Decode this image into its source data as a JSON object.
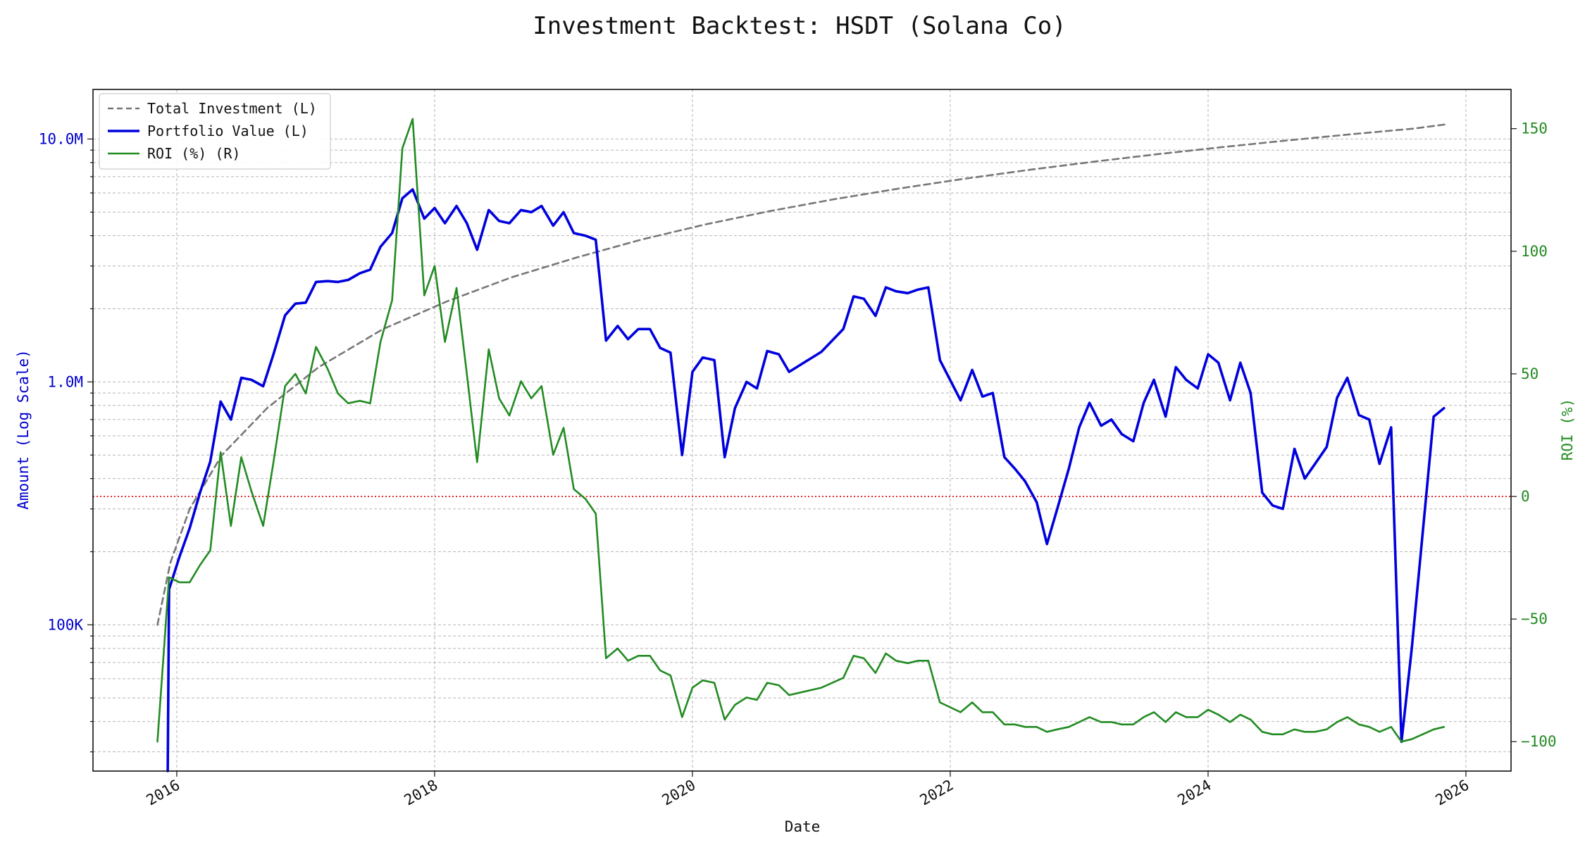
{
  "chart_data": {
    "type": "line",
    "title": "Investment Backtest: HSDT (Solana Co)",
    "xlabel": "Date",
    "ylabel_left": "Amount (Log Scale)",
    "ylabel_right": "ROI (%)",
    "x_ticks": [
      "2016",
      "2018",
      "2020",
      "2022",
      "2024",
      "2026"
    ],
    "y_left_ticks": [
      {
        "value": 100000,
        "label": "100K"
      },
      {
        "value": 1000000,
        "label": "1.0M"
      },
      {
        "value": 10000000,
        "label": "10.0M"
      }
    ],
    "y_right_ticks": [
      {
        "value": -100,
        "label": "−100"
      },
      {
        "value": -50,
        "label": "−50"
      },
      {
        "value": 0,
        "label": "0"
      },
      {
        "value": 50,
        "label": "50"
      },
      {
        "value": 100,
        "label": "100"
      },
      {
        "value": 150,
        "label": "150"
      }
    ],
    "x_range": [
      2015.35,
      2026.35
    ],
    "y_left_range": [
      25000,
      16000000
    ],
    "y_left_scale": "log",
    "y_right_range": [
      -112,
      166
    ],
    "grid": true,
    "legend_position": "top-left",
    "reference_line": {
      "axis": "right",
      "value": 0,
      "color": "#dd0000",
      "style": "dotted"
    },
    "series": [
      {
        "name": "Total Investment (L)",
        "axis": "left",
        "color": "#777777",
        "style": "dashed",
        "x": [
          2015.85,
          2015.95,
          2016.1,
          2016.35,
          2016.7,
          2017.1,
          2017.6,
          2018.1,
          2018.6,
          2019.1,
          2019.6,
          2020.1,
          2020.6,
          2021.1,
          2021.6,
          2022.1,
          2022.6,
          2023.1,
          2023.6,
          2024.1,
          2024.6,
          2025.1,
          2025.6,
          2025.85
        ],
        "y": [
          100000,
          180000,
          300000,
          500000,
          780000,
          1150000,
          1650000,
          2150000,
          2700000,
          3250000,
          3850000,
          4450000,
          5050000,
          5650000,
          6250000,
          6850000,
          7450000,
          8050000,
          8650000,
          9250000,
          9850000,
          10450000,
          11050000,
          11500000
        ]
      },
      {
        "name": "Portfolio Value (L)",
        "axis": "left",
        "color": "#0000dd",
        "style": "solid",
        "x": [
          2015.93,
          2015.94,
          2016.02,
          2016.1,
          2016.18,
          2016.26,
          2016.34,
          2016.42,
          2016.5,
          2016.58,
          2016.67,
          2016.75,
          2016.84,
          2016.92,
          2017.0,
          2017.08,
          2017.17,
          2017.25,
          2017.33,
          2017.42,
          2017.5,
          2017.58,
          2017.67,
          2017.75,
          2017.83,
          2017.92,
          2018.0,
          2018.08,
          2018.17,
          2018.25,
          2018.33,
          2018.42,
          2018.5,
          2018.58,
          2018.67,
          2018.75,
          2018.83,
          2018.92,
          2019.0,
          2019.08,
          2019.17,
          2019.25,
          2019.33,
          2019.42,
          2019.5,
          2019.58,
          2019.67,
          2019.75,
          2019.83,
          2019.92,
          2020.0,
          2020.08,
          2020.17,
          2020.25,
          2020.33,
          2020.42,
          2020.5,
          2020.58,
          2020.67,
          2020.75,
          2021.0,
          2021.17,
          2021.25,
          2021.33,
          2021.42,
          2021.5,
          2021.58,
          2021.67,
          2021.75,
          2021.83,
          2021.92,
          2022.08,
          2022.17,
          2022.25,
          2022.33,
          2022.42,
          2022.5,
          2022.58,
          2022.67,
          2022.75,
          2022.83,
          2022.92,
          2023.0,
          2023.08,
          2023.17,
          2023.25,
          2023.33,
          2023.42,
          2023.5,
          2023.58,
          2023.67,
          2023.75,
          2023.83,
          2023.92,
          2024.0,
          2024.08,
          2024.17,
          2024.25,
          2024.33,
          2024.42,
          2024.5,
          2024.58,
          2024.67,
          2024.75,
          2024.83,
          2024.92,
          2025.0,
          2025.08,
          2025.17,
          2025.25,
          2025.33,
          2025.42,
          2025.5,
          2025.58,
          2025.75,
          2025.83
        ],
        "y": [
          25000,
          140000,
          190000,
          250000,
          350000,
          470000,
          830000,
          700000,
          1040000,
          1020000,
          960000,
          1300000,
          1880000,
          2100000,
          2120000,
          2580000,
          2600000,
          2580000,
          2630000,
          2800000,
          2900000,
          3600000,
          4100000,
          5700000,
          6200000,
          4700000,
          5200000,
          4500000,
          5300000,
          4500000,
          3500000,
          5100000,
          4600000,
          4500000,
          5100000,
          5000000,
          5300000,
          4400000,
          5000000,
          4100000,
          4000000,
          3850000,
          1480000,
          1700000,
          1500000,
          1650000,
          1650000,
          1380000,
          1320000,
          500000,
          1100000,
          1260000,
          1230000,
          490000,
          780000,
          1000000,
          940000,
          1340000,
          1300000,
          1100000,
          1330000,
          1650000,
          2250000,
          2200000,
          1870000,
          2450000,
          2360000,
          2320000,
          2400000,
          2450000,
          1230000,
          840000,
          1120000,
          870000,
          900000,
          490000,
          440000,
          390000,
          320000,
          215000,
          300000,
          440000,
          650000,
          820000,
          660000,
          700000,
          610000,
          570000,
          820000,
          1020000,
          720000,
          1150000,
          1020000,
          940000,
          1300000,
          1200000,
          840000,
          1200000,
          900000,
          350000,
          310000,
          300000,
          530000,
          400000,
          460000,
          540000,
          860000,
          1040000,
          730000,
          700000,
          460000,
          650000,
          33000,
          80000,
          720000,
          780000
        ]
      },
      {
        "name": "ROI (%) (R)",
        "axis": "right",
        "color": "#228b22",
        "style": "solid",
        "x": [
          2015.85,
          2015.94,
          2016.02,
          2016.1,
          2016.18,
          2016.26,
          2016.34,
          2016.42,
          2016.5,
          2016.58,
          2016.67,
          2016.75,
          2016.84,
          2016.92,
          2017.0,
          2017.08,
          2017.17,
          2017.25,
          2017.33,
          2017.42,
          2017.5,
          2017.58,
          2017.67,
          2017.75,
          2017.83,
          2017.92,
          2018.0,
          2018.08,
          2018.17,
          2018.25,
          2018.33,
          2018.42,
          2018.5,
          2018.58,
          2018.67,
          2018.75,
          2018.83,
          2018.92,
          2019.0,
          2019.08,
          2019.17,
          2019.25,
          2019.33,
          2019.42,
          2019.5,
          2019.58,
          2019.67,
          2019.75,
          2019.83,
          2019.92,
          2020.0,
          2020.08,
          2020.17,
          2020.25,
          2020.33,
          2020.42,
          2020.5,
          2020.58,
          2020.67,
          2020.75,
          2021.0,
          2021.17,
          2021.25,
          2021.33,
          2021.42,
          2021.5,
          2021.58,
          2021.67,
          2021.75,
          2021.83,
          2021.92,
          2022.08,
          2022.17,
          2022.25,
          2022.33,
          2022.42,
          2022.5,
          2022.58,
          2022.67,
          2022.75,
          2022.83,
          2022.92,
          2023.0,
          2023.08,
          2023.17,
          2023.25,
          2023.33,
          2023.42,
          2023.5,
          2023.58,
          2023.67,
          2023.75,
          2023.83,
          2023.92,
          2024.0,
          2024.08,
          2024.17,
          2024.25,
          2024.33,
          2024.42,
          2024.5,
          2024.58,
          2024.67,
          2024.75,
          2024.83,
          2024.92,
          2025.0,
          2025.08,
          2025.17,
          2025.25,
          2025.33,
          2025.42,
          2025.5,
          2025.58,
          2025.75,
          2025.83
        ],
        "y": [
          -100,
          -33,
          -35,
          -35,
          -28,
          -22,
          18,
          -12,
          16,
          2,
          -12,
          14,
          45,
          50,
          42,
          61,
          52,
          42,
          38,
          39,
          38,
          63,
          80,
          142,
          154,
          82,
          94,
          63,
          85,
          50,
          14,
          60,
          40,
          33,
          47,
          40,
          45,
          17,
          28,
          3,
          -1,
          -7,
          -66,
          -62,
          -67,
          -65,
          -65,
          -71,
          -73,
          -90,
          -78,
          -75,
          -76,
          -91,
          -85,
          -82,
          -83,
          -76,
          -77,
          -81,
          -78,
          -74,
          -65,
          -66,
          -72,
          -64,
          -67,
          -68,
          -67,
          -67,
          -84,
          -88,
          -84,
          -88,
          -88,
          -93,
          -93,
          -94,
          -94,
          -96,
          -95,
          -94,
          -92,
          -90,
          -92,
          -92,
          -93,
          -93,
          -90,
          -88,
          -92,
          -88,
          -90,
          -90,
          -87,
          -89,
          -92,
          -89,
          -91,
          -96,
          -97,
          -97,
          -95,
          -96,
          -96,
          -95,
          -92,
          -90,
          -93,
          -94,
          -96,
          -94,
          -100,
          -99,
          -95,
          -94
        ]
      }
    ]
  }
}
